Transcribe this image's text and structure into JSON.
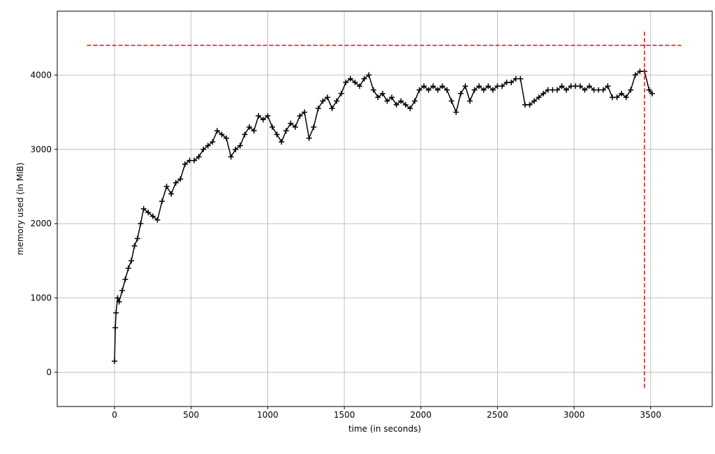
{
  "chart_data": {
    "type": "line",
    "xlabel": "time (in seconds)",
    "ylabel": "memory used (in MiB)",
    "x": [
      0,
      5,
      10,
      20,
      30,
      50,
      70,
      90,
      110,
      130,
      150,
      170,
      190,
      220,
      250,
      280,
      310,
      340,
      370,
      400,
      430,
      460,
      490,
      520,
      550,
      580,
      610,
      640,
      670,
      700,
      730,
      760,
      790,
      820,
      850,
      880,
      910,
      940,
      970,
      1000,
      1030,
      1060,
      1090,
      1120,
      1150,
      1180,
      1210,
      1240,
      1270,
      1300,
      1330,
      1360,
      1390,
      1420,
      1450,
      1480,
      1510,
      1540,
      1570,
      1600,
      1630,
      1660,
      1690,
      1720,
      1750,
      1780,
      1810,
      1840,
      1870,
      1900,
      1930,
      1960,
      1990,
      2020,
      2050,
      2080,
      2110,
      2140,
      2170,
      2200,
      2230,
      2260,
      2290,
      2320,
      2350,
      2380,
      2410,
      2440,
      2470,
      2500,
      2530,
      2560,
      2590,
      2620,
      2650,
      2680,
      2710,
      2740,
      2770,
      2800,
      2830,
      2860,
      2890,
      2920,
      2950,
      2980,
      3010,
      3040,
      3070,
      3100,
      3130,
      3160,
      3190,
      3220,
      3250,
      3280,
      3310,
      3340,
      3370,
      3400,
      3430,
      3460,
      3490,
      3510
    ],
    "values": [
      150,
      600,
      800,
      1000,
      950,
      1100,
      1250,
      1400,
      1500,
      1700,
      1800,
      2000,
      2200,
      2150,
      2100,
      2050,
      2300,
      2500,
      2400,
      2550,
      2600,
      2800,
      2850,
      2850,
      2900,
      3000,
      3050,
      3100,
      3250,
      3200,
      3150,
      2900,
      3000,
      3050,
      3200,
      3300,
      3250,
      3450,
      3400,
      3450,
      3300,
      3200,
      3100,
      3250,
      3350,
      3300,
      3450,
      3500,
      3150,
      3300,
      3550,
      3650,
      3700,
      3550,
      3650,
      3750,
      3900,
      3950,
      3900,
      3850,
      3950,
      4000,
      3800,
      3700,
      3750,
      3650,
      3700,
      3600,
      3650,
      3600,
      3550,
      3650,
      3800,
      3850,
      3800,
      3850,
      3800,
      3850,
      3800,
      3650,
      3500,
      3750,
      3850,
      3650,
      3800,
      3850,
      3800,
      3850,
      3800,
      3850,
      3850,
      3900,
      3900,
      3950,
      3950,
      3600,
      3600,
      3650,
      3700,
      3750,
      3800,
      3800,
      3800,
      3850,
      3800,
      3850,
      3850,
      3850,
      3800,
      3850,
      3800,
      3800,
      3800,
      3850,
      3700,
      3700,
      3750,
      3700,
      3800,
      4000,
      4050,
      4050,
      3800,
      3750
    ],
    "color": "#000000",
    "marker": "+",
    "xlim": [
      -374,
      3902
    ],
    "ylim": [
      -460,
      4859
    ],
    "xticks": [
      0,
      500,
      1000,
      1500,
      2000,
      2500,
      3000,
      3500
    ],
    "yticks": [
      0,
      1000,
      2000,
      3000,
      4000
    ],
    "grid": true,
    "hline": {
      "y": 4400,
      "xmin": -180,
      "xmax": 3700,
      "color": "#ff0000"
    },
    "vline": {
      "x": 3460,
      "ymin": -210,
      "ymax": 4610,
      "color": "#ff0000"
    }
  }
}
